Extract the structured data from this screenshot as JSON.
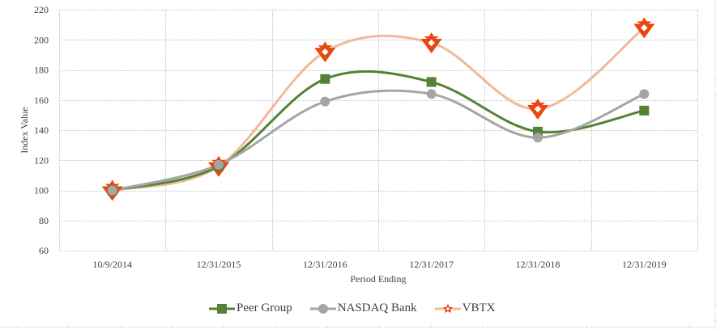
{
  "chart_data": {
    "type": "line",
    "title": "",
    "xlabel": "Period Ending",
    "ylabel": "Index Value",
    "ylim": [
      60,
      220
    ],
    "yticks": [
      60,
      80,
      100,
      120,
      140,
      160,
      180,
      200,
      220
    ],
    "grid": true,
    "smooth": true,
    "legend_position": "bottom",
    "categories": [
      "10/9/2014",
      "12/31/2015",
      "12/31/2016",
      "12/31/2017",
      "12/31/2018",
      "12/31/2019"
    ],
    "series": [
      {
        "name": "Peer Group",
        "color": "#548235",
        "marker": "square",
        "values": [
          100,
          116,
          174,
          172,
          139,
          153
        ]
      },
      {
        "name": "NASDAQ Bank",
        "color": "#a5a5a5",
        "marker": "circle",
        "values": [
          100,
          117,
          159,
          164,
          135,
          164
        ]
      },
      {
        "name": "VBTX",
        "color": "#f0b99a",
        "marker_color": "#e8470f",
        "marker": "star-triangle",
        "values": [
          100,
          116,
          192,
          198,
          154,
          208
        ]
      }
    ]
  },
  "legend": {
    "items": [
      {
        "label": "Peer Group"
      },
      {
        "label": "NASDAQ Bank"
      },
      {
        "label": "VBTX"
      }
    ]
  }
}
